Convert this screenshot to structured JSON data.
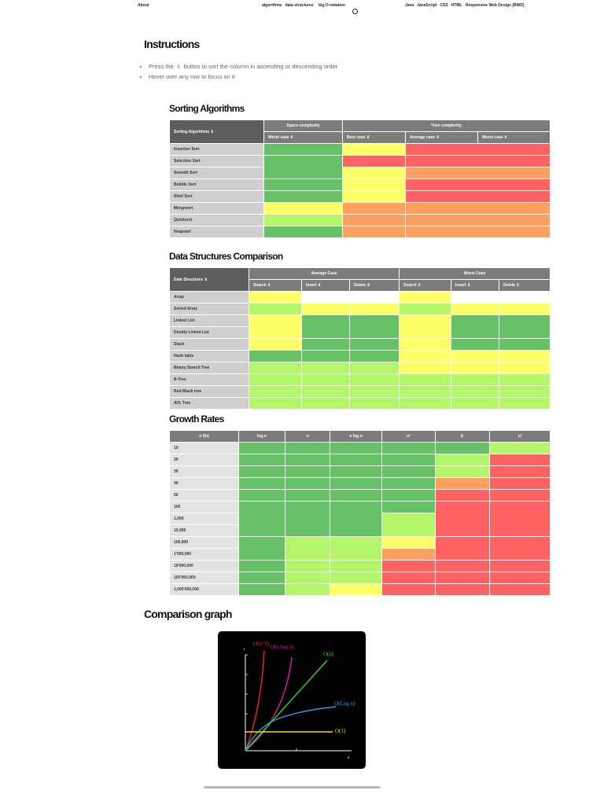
{
  "nav": {
    "about": "About",
    "algorithms": "algorithms",
    "data_structures": "data structures",
    "big_o": "big O notation",
    "java": "Java",
    "javascript": "JavaScript",
    "css": "CSS",
    "html": "HTML",
    "rwd": "Responsive Web Design (RWD)",
    "github_icon": "github-icon"
  },
  "instructions": {
    "title": "Instructions",
    "item1_pre": "Press the",
    "item1_post": "button to sort the column in ascending or descending order",
    "item2": "Hover over any row to focus on it",
    "sort_icon": "⇕"
  },
  "colors": {
    "G": "#66c166",
    "L": "#b3f56b",
    "Y": "#ffff66",
    "O": "#ffa060",
    "R": "#ff6262",
    "W": "#ffffff"
  },
  "sorting": {
    "title": "Sorting Algorithms",
    "header": {
      "name": "Sorting Algorithms",
      "space": "Space complexity",
      "time": "Time complexity",
      "space_worst": "Worst case",
      "best": "Best case",
      "average": "Average case",
      "worst": "Worst case"
    },
    "rows": [
      {
        "name": "Insertion Sort",
        "cells": [
          {
            "c": "G"
          },
          {
            "c": "Y"
          },
          {
            "c": "R",
            "cs": 2
          }
        ]
      },
      {
        "name": "Selection Sort",
        "cells": [
          {
            "c": "G",
            "rs": 2
          },
          {
            "c": "R"
          },
          {
            "c": "R",
            "cs": 2
          }
        ]
      },
      {
        "name": "Smooth Sort",
        "cells": [
          {
            "c": "Y"
          },
          {
            "c": "O",
            "cs": 2
          }
        ]
      },
      {
        "name": "Bubble Sort",
        "cells": [
          {
            "c": "G"
          },
          {
            "c": "Y"
          },
          {
            "c": "R",
            "cs": 2
          }
        ]
      },
      {
        "name": "Shell Sort",
        "cells": [
          {
            "c": "G"
          },
          {
            "c": "Y"
          },
          {
            "c": "R",
            "cs": 2
          }
        ]
      },
      {
        "name": "Mergesort",
        "cells": [
          {
            "c": "Y"
          },
          {
            "c": "O"
          },
          {
            "c": "O",
            "cs": 2
          }
        ]
      },
      {
        "name": "Quicksort",
        "cells": [
          {
            "c": "L"
          },
          {
            "c": "O"
          },
          {
            "c": "O",
            "cs": 2
          }
        ]
      },
      {
        "name": "Heapsort",
        "cells": [
          {
            "c": "G"
          },
          {
            "c": "O"
          },
          {
            "c": "O",
            "cs": 2
          }
        ]
      }
    ]
  },
  "structures": {
    "title": "Data Structures Comparison",
    "header": {
      "name": "Data Structures",
      "average": "Average Case",
      "worst": "Worst Case",
      "cols": [
        "Search",
        "Insert",
        "Delete",
        "Search",
        "Insert",
        "Delete"
      ]
    },
    "rows": [
      {
        "name": "Array",
        "cells": [
          {
            "c": "Y"
          },
          {
            "c": "W",
            "cs": 2
          },
          {
            "c": "Y"
          },
          {
            "c": "W",
            "cs": 2
          }
        ]
      },
      {
        "name": "Sorted Array",
        "cells": [
          {
            "c": "L"
          },
          {
            "c": "Y"
          },
          {
            "c": "Y"
          },
          {
            "c": "L"
          },
          {
            "c": "Y"
          },
          {
            "c": "Y"
          }
        ]
      },
      {
        "name": "Linked List",
        "cells": [
          {
            "c": "Y",
            "rs": 2
          },
          {
            "c": "G",
            "rs": 2
          },
          {
            "c": "G",
            "rs": 2
          },
          {
            "c": "Y",
            "rs": 2
          },
          {
            "c": "G",
            "rs": 2
          },
          {
            "c": "G",
            "rs": 2
          }
        ]
      },
      {
        "name": "Doubly Linked List",
        "cells": []
      },
      {
        "name": "Stack",
        "cells": [
          {
            "c": "Y"
          },
          {
            "c": "G"
          },
          {
            "c": "G"
          },
          {
            "c": "Y"
          },
          {
            "c": "G"
          },
          {
            "c": "G"
          }
        ]
      },
      {
        "name": "Hash table",
        "cells": [
          {
            "c": "G"
          },
          {
            "c": "G"
          },
          {
            "c": "G"
          },
          {
            "c": "Y"
          },
          {
            "c": "Y"
          },
          {
            "c": "Y"
          }
        ]
      },
      {
        "name": "Binary Search Tree",
        "cells": [
          {
            "c": "L"
          },
          {
            "c": "L"
          },
          {
            "c": "L"
          },
          {
            "c": "Y"
          },
          {
            "c": "Y"
          },
          {
            "c": "Y"
          }
        ]
      },
      {
        "name": "B-Tree",
        "cells": [
          {
            "c": "L"
          },
          {
            "c": "L"
          },
          {
            "c": "L"
          },
          {
            "c": "L"
          },
          {
            "c": "L"
          },
          {
            "c": "L"
          }
        ]
      },
      {
        "name": "Red-Black tree",
        "cells": [
          {
            "c": "L"
          },
          {
            "c": "L"
          },
          {
            "c": "L"
          },
          {
            "c": "L"
          },
          {
            "c": "L"
          },
          {
            "c": "L"
          }
        ]
      },
      {
        "name": "AVL Tree",
        "cells": [
          {
            "c": "L"
          },
          {
            "c": "L"
          },
          {
            "c": "L"
          },
          {
            "c": "L"
          },
          {
            "c": "L"
          },
          {
            "c": "L"
          }
        ]
      }
    ]
  },
  "growth": {
    "title": "Growth Rates",
    "header": [
      "n f(n)",
      "log n",
      "n",
      "n log n",
      "n²",
      "2ⁿ",
      "n!"
    ],
    "rows": [
      {
        "name": "10",
        "cells": [
          {
            "c": "G"
          },
          {
            "c": "G"
          },
          {
            "c": "G"
          },
          {
            "c": "G"
          },
          {
            "c": "G"
          },
          {
            "c": "L"
          }
        ]
      },
      {
        "name": "20",
        "cells": [
          {
            "c": "G"
          },
          {
            "c": "G"
          },
          {
            "c": "G"
          },
          {
            "c": "G"
          },
          {
            "c": "L"
          },
          {
            "c": "R"
          }
        ]
      },
      {
        "name": "30",
        "cells": [
          {
            "c": "G"
          },
          {
            "c": "G"
          },
          {
            "c": "G"
          },
          {
            "c": "G"
          },
          {
            "c": "L"
          },
          {
            "c": "R"
          }
        ]
      },
      {
        "name": "40",
        "cells": [
          {
            "c": "G"
          },
          {
            "c": "G"
          },
          {
            "c": "G"
          },
          {
            "c": "G"
          },
          {
            "c": "O"
          },
          {
            "c": "R"
          }
        ]
      },
      {
        "name": "50",
        "cells": [
          {
            "c": "G"
          },
          {
            "c": "G"
          },
          {
            "c": "G"
          },
          {
            "c": "G"
          },
          {
            "c": "R"
          },
          {
            "c": "R"
          }
        ]
      },
      {
        "name": "100",
        "cells": [
          {
            "c": "G",
            "rs": 3
          },
          {
            "c": "G",
            "rs": 3
          },
          {
            "c": "G",
            "rs": 3
          },
          {
            "c": "G"
          },
          {
            "c": "R",
            "rs": 3
          },
          {
            "c": "R",
            "rs": 3
          }
        ]
      },
      {
        "name": "1,000",
        "cells": [
          {
            "c": "L",
            "rs": 2
          }
        ]
      },
      {
        "name": "10,000",
        "cells": []
      },
      {
        "name": "100,000",
        "cells": [
          {
            "c": "G",
            "rs": 2
          },
          {
            "c": "L",
            "rs": 2
          },
          {
            "c": "L",
            "rs": 2
          },
          {
            "c": "Y"
          },
          {
            "c": "R",
            "rs": 2
          },
          {
            "c": "R",
            "rs": 2
          }
        ]
      },
      {
        "name": "1'000,000",
        "cells": [
          {
            "c": "O"
          }
        ]
      },
      {
        "name": "10'000,000",
        "cells": [
          {
            "c": "G"
          },
          {
            "c": "L"
          },
          {
            "c": "L"
          },
          {
            "c": "R"
          },
          {
            "c": "R"
          },
          {
            "c": "R"
          }
        ]
      },
      {
        "name": "100'000,000",
        "cells": [
          {
            "c": "G"
          },
          {
            "c": "L"
          },
          {
            "c": "L"
          },
          {
            "c": "R"
          },
          {
            "c": "R"
          },
          {
            "c": "R"
          }
        ]
      },
      {
        "name": "1,000'000,000",
        "cells": [
          {
            "c": "G"
          },
          {
            "c": "L"
          },
          {
            "c": "Y"
          },
          {
            "c": "R"
          },
          {
            "c": "R"
          },
          {
            "c": "R"
          }
        ]
      }
    ]
  },
  "graph": {
    "title": "Comparison graph",
    "y_axis": "t",
    "x_axis": "n",
    "curves": [
      {
        "label": "O(n^2)",
        "color": "#ff2020"
      },
      {
        "label": "O(n log n)",
        "color": "#e020a0"
      },
      {
        "label": "O(n)",
        "color": "#20e020"
      },
      {
        "label": "O(Log n)",
        "color": "#30a0e0"
      },
      {
        "label": "O(1)",
        "color": "#e8e020"
      }
    ]
  }
}
